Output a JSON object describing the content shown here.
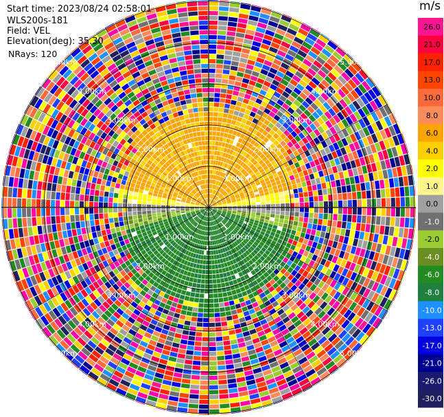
{
  "header": {
    "start_time": "Start time: 2023/08/24 02:58:01",
    "instrument": "WLS200s-181",
    "field": "Field: VEL",
    "elevation": "Elevation(deg): 35.30",
    "nrays": "NRays: 120"
  },
  "colorbar": {
    "unit": "m/s",
    "ticks": [
      "26.0",
      "21.0",
      "17.0",
      "13.0",
      "10.0",
      "8.0",
      "6.0",
      "4.0",
      "2.0",
      "1.0",
      "0.0",
      "-1.0",
      "-2.0",
      "-4.0",
      "-6.0",
      "-8.0",
      "-10.0",
      "-13.0",
      "-17.0",
      "-21.0",
      "-26.0",
      "-30.0"
    ],
    "colors": [
      "#ff1493",
      "#ff0040",
      "#ff2200",
      "#ff4500",
      "#ff6a3d",
      "#ff8c5a",
      "#ffa500",
      "#ffd000",
      "#ffff00",
      "#fff58a",
      "#a0a0a0",
      "#707070",
      "#9acd32",
      "#6b8e23",
      "#228b22",
      "#1f7f3f",
      "#1e90ff",
      "#1e40ff",
      "#0000e0",
      "#000090",
      "#1a1a70",
      "#202060"
    ]
  },
  "chart_data": {
    "type": "ppi",
    "field": "VEL",
    "units": "m/s",
    "elevation_deg": 35.3,
    "nrays": 120,
    "range_labels": [
      "1.00km",
      "2.00km",
      "3.00km",
      "4.00km",
      "5.00km"
    ]
  }
}
